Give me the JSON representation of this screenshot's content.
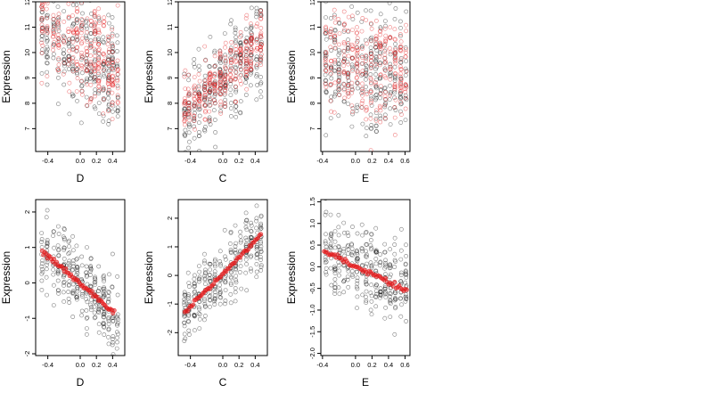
{
  "chart_data": [
    {
      "type": "scatter",
      "panel": "top-left",
      "xlabel": "D",
      "ylabel": "Expression",
      "xlim": [
        -0.55,
        0.55
      ],
      "ylim": [
        6.1,
        12
      ],
      "xticks": [
        -0.4,
        0.0,
        0.2,
        0.4
      ],
      "xtick_labels": [
        "-0.4",
        "0.0",
        "0.2",
        "0.4"
      ],
      "yticks": [
        7,
        8,
        9,
        10,
        11,
        12
      ],
      "ytick_labels": [
        "7",
        "8",
        "9",
        "10",
        "11",
        "12"
      ],
      "x_levels": [
        -0.47,
        -0.41,
        -0.33,
        -0.27,
        -0.2,
        -0.14,
        -0.09,
        -0.04,
        0.02,
        0.08,
        0.13,
        0.18,
        0.23,
        0.29,
        0.35,
        0.4,
        0.46
      ],
      "series": [
        {
          "color": "#000000",
          "trend": {
            "y_start": 10.0,
            "slope": -2.0,
            "spread": 1.1,
            "n": 300
          },
          "label_visible": false
        },
        {
          "color": "#e31a1c",
          "trend": {
            "y_start": 10.2,
            "slope": -2.2,
            "spread": 0.9,
            "n": 280
          },
          "label_visible": false
        }
      ]
    },
    {
      "type": "scatter",
      "panel": "top-middle",
      "xlabel": "C",
      "ylabel": "Expression",
      "xlim": [
        -0.55,
        0.55
      ],
      "ylim": [
        6.1,
        12
      ],
      "xticks": [
        -0.4,
        0.0,
        0.2,
        0.4
      ],
      "xtick_labels": [
        "-0.4",
        "0.0",
        "0.2",
        "0.4"
      ],
      "yticks": [
        7,
        8,
        9,
        10,
        11,
        12
      ],
      "ytick_labels": [
        "7",
        "8",
        "9",
        "10",
        "11",
        "12"
      ],
      "x_levels": [
        -0.47,
        -0.42,
        -0.35,
        -0.29,
        -0.22,
        -0.16,
        -0.1,
        -0.03,
        0.03,
        0.1,
        0.16,
        0.22,
        0.29,
        0.35,
        0.42,
        0.47
      ],
      "series": [
        {
          "color": "#000000",
          "trend": {
            "y_start": 8.8,
            "slope": 2.8,
            "spread": 0.9,
            "n": 300
          }
        },
        {
          "color": "#e31a1c",
          "trend": {
            "y_start": 9.1,
            "slope": 2.9,
            "spread": 0.55,
            "n": 280
          }
        }
      ]
    },
    {
      "type": "scatter",
      "panel": "top-right",
      "xlabel": "E",
      "ylabel": "Expression",
      "xlim": [
        -0.42,
        0.66
      ],
      "ylim": [
        6.1,
        12
      ],
      "xticks": [
        -0.4,
        0.0,
        0.2,
        0.4,
        0.6
      ],
      "xtick_labels": [
        "-0.4",
        "0.0",
        "0.2",
        "0.4",
        "0.6"
      ],
      "yticks": [
        7,
        8,
        9,
        10,
        11,
        12
      ],
      "ytick_labels": [
        "7",
        "8",
        "9",
        "10",
        "11",
        "12"
      ],
      "x_levels": [
        -0.36,
        -0.3,
        -0.25,
        -0.2,
        -0.14,
        -0.09,
        -0.04,
        0.02,
        0.08,
        0.13,
        0.19,
        0.25,
        0.3,
        0.36,
        0.42,
        0.48,
        0.55,
        0.61
      ],
      "series": [
        {
          "color": "#000000",
          "trend": {
            "y_start": 9.4,
            "slope": -0.4,
            "spread": 1.1,
            "n": 300
          }
        },
        {
          "color": "#e31a1c",
          "trend": {
            "y_start": 9.5,
            "slope": -0.5,
            "spread": 1.0,
            "n": 280
          }
        }
      ]
    },
    {
      "type": "scatter",
      "panel": "bottom-left",
      "xlabel": "D",
      "ylabel": "Expression",
      "xlim": [
        -0.55,
        0.55
      ],
      "ylim": [
        -2.05,
        2.35
      ],
      "xticks": [
        -0.4,
        0.0,
        0.2,
        0.4
      ],
      "xtick_labels": [
        "-0.4",
        "0.0",
        "0.2",
        "0.4"
      ],
      "yticks": [
        -2,
        -1,
        0,
        1,
        2
      ],
      "ytick_labels": [
        "-2",
        "-1",
        "0",
        "1",
        "2"
      ],
      "x_levels": [
        -0.47,
        -0.41,
        -0.33,
        -0.27,
        -0.2,
        -0.14,
        -0.09,
        -0.04,
        0.02,
        0.08,
        0.13,
        0.18,
        0.23,
        0.29,
        0.35,
        0.4,
        0.46
      ],
      "series": [
        {
          "color": "#000000",
          "trend": {
            "y_start": 0.0,
            "slope": -2.0,
            "spread": 0.55,
            "n": 300
          }
        },
        {
          "color": "#e31a1c",
          "fit_line": {
            "x": [
              -0.47,
              0.42
            ],
            "y": [
              0.9,
              -0.85
            ]
          }
        }
      ]
    },
    {
      "type": "scatter",
      "panel": "bottom-middle",
      "xlabel": "C",
      "ylabel": "Expression",
      "xlim": [
        -0.55,
        0.55
      ],
      "ylim": [
        -2.8,
        2.65
      ],
      "xticks": [
        -0.4,
        0.0,
        0.2,
        0.4
      ],
      "xtick_labels": [
        "-0.4",
        "0.0",
        "0.2",
        "0.4"
      ],
      "yticks": [
        -2,
        -1,
        0,
        1,
        2
      ],
      "ytick_labels": [
        "-2",
        "-1",
        "0",
        "1",
        "2"
      ],
      "x_levels": [
        -0.47,
        -0.42,
        -0.35,
        -0.29,
        -0.22,
        -0.16,
        -0.1,
        -0.03,
        0.03,
        0.1,
        0.16,
        0.22,
        0.29,
        0.35,
        0.42,
        0.47
      ],
      "series": [
        {
          "color": "#000000",
          "trend": {
            "y_start": 0.0,
            "slope": 2.8,
            "spread": 0.6,
            "n": 300
          }
        },
        {
          "color": "#e31a1c",
          "fit_line": {
            "x": [
              -0.47,
              0.47
            ],
            "y": [
              -1.3,
              1.4
            ]
          }
        }
      ]
    },
    {
      "type": "scatter",
      "panel": "bottom-right",
      "xlabel": "E",
      "ylabel": "Expression",
      "xlim": [
        -0.42,
        0.66
      ],
      "ylim": [
        -2.05,
        1.55
      ],
      "xticks": [
        -0.4,
        0.0,
        0.2,
        0.4,
        0.6
      ],
      "xtick_labels": [
        "-0.4",
        "0.0",
        "0.2",
        "0.4",
        "0.6"
      ],
      "yticks": [
        -2.0,
        -1.5,
        -1.0,
        -0.5,
        0.0,
        0.5,
        1.0,
        1.5
      ],
      "ytick_labels": [
        "-2.0",
        "-1.5",
        "-1.0",
        "-0.5",
        "0.0",
        "0.5",
        "1.0",
        "1.5"
      ],
      "x_levels": [
        -0.36,
        -0.3,
        -0.25,
        -0.2,
        -0.14,
        -0.09,
        -0.04,
        0.02,
        0.08,
        0.13,
        0.19,
        0.25,
        0.3,
        0.36,
        0.42,
        0.48,
        0.55,
        0.61
      ],
      "series": [
        {
          "color": "#000000",
          "trend": {
            "y_start": 0.05,
            "slope": -0.9,
            "spread": 0.45,
            "n": 300
          }
        },
        {
          "color": "#e31a1c",
          "fit_line": {
            "x": [
              -0.38,
              0.62
            ],
            "y": [
              0.35,
              -0.55
            ]
          }
        }
      ]
    }
  ]
}
